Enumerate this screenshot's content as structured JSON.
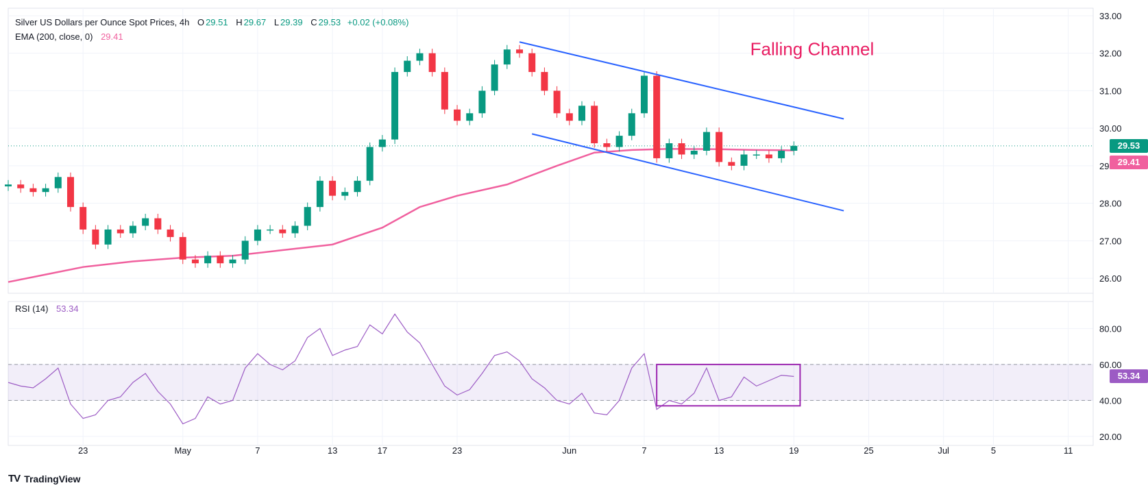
{
  "header": {
    "symbol": "Silver US Dollars per Ounce Spot Prices, 4h",
    "o_label": "O",
    "o_value": "29.51",
    "h_label": "H",
    "h_value": "29.67",
    "l_label": "L",
    "l_value": "29.39",
    "c_label": "C",
    "c_value": "29.53",
    "change": "+0.02 (+0.08%)",
    "ema_label": "EMA (200, close, 0)",
    "ema_value": "29.41",
    "rsi_label": "RSI (14)",
    "rsi_value": "53.34"
  },
  "annotation": "Falling Channel",
  "footer": {
    "brand": "TradingView",
    "logo": "TV"
  },
  "colors": {
    "up": "#089981",
    "down": "#f23645",
    "ema": "#f0609e",
    "rsi": "#9c5bc4",
    "channel": "#2962ff",
    "box": "#9c27b0",
    "annotation": "#e91e63",
    "grid": "#f0f3fa"
  },
  "price_tags": {
    "last": "29.53",
    "ema": "29.41"
  },
  "rsi_tag": "53.34",
  "chart_data": [
    {
      "type": "candlestick",
      "title": "Silver US Dollars per Ounce Spot Prices, 4h",
      "ylim": [
        25.6,
        33.2
      ],
      "yticks": [
        "33.00",
        "32.00",
        "31.00",
        "30.00",
        "29.00",
        "28.00",
        "27.00",
        "26.00"
      ],
      "xticks": [
        {
          "label": "23",
          "t": 6
        },
        {
          "label": "May",
          "t": 14
        },
        {
          "label": "7",
          "t": 20
        },
        {
          "label": "13",
          "t": 26
        },
        {
          "label": "17",
          "t": 30
        },
        {
          "label": "23",
          "t": 36
        },
        {
          "label": "Jun",
          "t": 45
        },
        {
          "label": "7",
          "t": 51
        },
        {
          "label": "13",
          "t": 57
        },
        {
          "label": "19",
          "t": 63
        },
        {
          "label": "25",
          "t": 69
        },
        {
          "label": "Jul",
          "t": 75
        },
        {
          "label": "5",
          "t": 79
        },
        {
          "label": "11",
          "t": 85
        }
      ],
      "close_series": [
        {
          "t": 0,
          "v": 28.5
        },
        {
          "t": 1,
          "v": 28.4
        },
        {
          "t": 2,
          "v": 28.3
        },
        {
          "t": 3,
          "v": 28.4
        },
        {
          "t": 4,
          "v": 28.7
        },
        {
          "t": 5,
          "v": 27.9
        },
        {
          "t": 6,
          "v": 27.3
        },
        {
          "t": 7,
          "v": 26.9
        },
        {
          "t": 8,
          "v": 27.3
        },
        {
          "t": 9,
          "v": 27.2
        },
        {
          "t": 10,
          "v": 27.4
        },
        {
          "t": 11,
          "v": 27.6
        },
        {
          "t": 12,
          "v": 27.3
        },
        {
          "t": 13,
          "v": 27.1
        },
        {
          "t": 14,
          "v": 26.5
        },
        {
          "t": 15,
          "v": 26.4
        },
        {
          "t": 16,
          "v": 26.6
        },
        {
          "t": 17,
          "v": 26.4
        },
        {
          "t": 18,
          "v": 26.5
        },
        {
          "t": 19,
          "v": 27.0
        },
        {
          "t": 20,
          "v": 27.3
        },
        {
          "t": 21,
          "v": 27.3
        },
        {
          "t": 22,
          "v": 27.2
        },
        {
          "t": 23,
          "v": 27.4
        },
        {
          "t": 24,
          "v": 27.9
        },
        {
          "t": 25,
          "v": 28.6
        },
        {
          "t": 26,
          "v": 28.2
        },
        {
          "t": 27,
          "v": 28.3
        },
        {
          "t": 28,
          "v": 28.6
        },
        {
          "t": 29,
          "v": 29.5
        },
        {
          "t": 30,
          "v": 29.7
        },
        {
          "t": 31,
          "v": 31.5
        },
        {
          "t": 32,
          "v": 31.8
        },
        {
          "t": 33,
          "v": 32.0
        },
        {
          "t": 34,
          "v": 31.5
        },
        {
          "t": 35,
          "v": 30.5
        },
        {
          "t": 36,
          "v": 30.2
        },
        {
          "t": 37,
          "v": 30.4
        },
        {
          "t": 38,
          "v": 31.0
        },
        {
          "t": 39,
          "v": 31.7
        },
        {
          "t": 40,
          "v": 32.1
        },
        {
          "t": 41,
          "v": 32.0
        },
        {
          "t": 42,
          "v": 31.5
        },
        {
          "t": 43,
          "v": 31.0
        },
        {
          "t": 44,
          "v": 30.4
        },
        {
          "t": 45,
          "v": 30.2
        },
        {
          "t": 46,
          "v": 30.6
        },
        {
          "t": 47,
          "v": 29.6
        },
        {
          "t": 48,
          "v": 29.5
        },
        {
          "t": 49,
          "v": 29.8
        },
        {
          "t": 50,
          "v": 30.4
        },
        {
          "t": 51,
          "v": 31.4
        },
        {
          "t": 52,
          "v": 29.2
        },
        {
          "t": 53,
          "v": 29.6
        },
        {
          "t": 54,
          "v": 29.3
        },
        {
          "t": 55,
          "v": 29.4
        },
        {
          "t": 56,
          "v": 29.9
        },
        {
          "t": 57,
          "v": 29.1
        },
        {
          "t": 58,
          "v": 29.0
        },
        {
          "t": 59,
          "v": 29.3
        },
        {
          "t": 60,
          "v": 29.3
        },
        {
          "t": 61,
          "v": 29.2
        },
        {
          "t": 62,
          "v": 29.4
        },
        {
          "t": 63,
          "v": 29.53
        }
      ],
      "ema_200": [
        {
          "t": 0,
          "v": 25.9
        },
        {
          "t": 3,
          "v": 26.1
        },
        {
          "t": 6,
          "v": 26.3
        },
        {
          "t": 10,
          "v": 26.45
        },
        {
          "t": 14,
          "v": 26.55
        },
        {
          "t": 18,
          "v": 26.6
        },
        {
          "t": 22,
          "v": 26.75
        },
        {
          "t": 26,
          "v": 26.9
        },
        {
          "t": 30,
          "v": 27.35
        },
        {
          "t": 33,
          "v": 27.9
        },
        {
          "t": 36,
          "v": 28.2
        },
        {
          "t": 40,
          "v": 28.5
        },
        {
          "t": 44,
          "v": 29.0
        },
        {
          "t": 47,
          "v": 29.35
        },
        {
          "t": 50,
          "v": 29.42
        },
        {
          "t": 53,
          "v": 29.45
        },
        {
          "t": 57,
          "v": 29.44
        },
        {
          "t": 60,
          "v": 29.42
        },
        {
          "t": 63,
          "v": 29.41
        }
      ],
      "channel_upper": [
        {
          "t": 41,
          "v": 32.3
        },
        {
          "t": 67,
          "v": 30.25
        }
      ],
      "channel_lower": [
        {
          "t": 42,
          "v": 29.85
        },
        {
          "t": 67,
          "v": 27.8
        }
      ],
      "last_price": 29.53,
      "annotation": "Falling Channel"
    },
    {
      "type": "line",
      "title": "RSI (14)",
      "ylim": [
        15,
        95
      ],
      "yticks": [
        "80.00",
        "60.00",
        "40.00",
        "20.00"
      ],
      "bands": [
        40,
        60
      ],
      "series": [
        {
          "name": "RSI (14)",
          "values": [
            {
              "t": 0,
              "v": 50
            },
            {
              "t": 1,
              "v": 48
            },
            {
              "t": 2,
              "v": 47
            },
            {
              "t": 3,
              "v": 52
            },
            {
              "t": 4,
              "v": 58
            },
            {
              "t": 5,
              "v": 38
            },
            {
              "t": 6,
              "v": 30
            },
            {
              "t": 7,
              "v": 32
            },
            {
              "t": 8,
              "v": 40
            },
            {
              "t": 9,
              "v": 42
            },
            {
              "t": 10,
              "v": 50
            },
            {
              "t": 11,
              "v": 55
            },
            {
              "t": 12,
              "v": 45
            },
            {
              "t": 13,
              "v": 38
            },
            {
              "t": 14,
              "v": 27
            },
            {
              "t": 15,
              "v": 30
            },
            {
              "t": 16,
              "v": 42
            },
            {
              "t": 17,
              "v": 38
            },
            {
              "t": 18,
              "v": 40
            },
            {
              "t": 19,
              "v": 58
            },
            {
              "t": 20,
              "v": 66
            },
            {
              "t": 21,
              "v": 60
            },
            {
              "t": 22,
              "v": 57
            },
            {
              "t": 23,
              "v": 62
            },
            {
              "t": 24,
              "v": 75
            },
            {
              "t": 25,
              "v": 80
            },
            {
              "t": 26,
              "v": 65
            },
            {
              "t": 27,
              "v": 68
            },
            {
              "t": 28,
              "v": 70
            },
            {
              "t": 29,
              "v": 82
            },
            {
              "t": 30,
              "v": 77
            },
            {
              "t": 31,
              "v": 88
            },
            {
              "t": 32,
              "v": 78
            },
            {
              "t": 33,
              "v": 72
            },
            {
              "t": 34,
              "v": 60
            },
            {
              "t": 35,
              "v": 48
            },
            {
              "t": 36,
              "v": 43
            },
            {
              "t": 37,
              "v": 46
            },
            {
              "t": 38,
              "v": 55
            },
            {
              "t": 39,
              "v": 65
            },
            {
              "t": 40,
              "v": 67
            },
            {
              "t": 41,
              "v": 62
            },
            {
              "t": 42,
              "v": 52
            },
            {
              "t": 43,
              "v": 47
            },
            {
              "t": 44,
              "v": 40
            },
            {
              "t": 45,
              "v": 38
            },
            {
              "t": 46,
              "v": 44
            },
            {
              "t": 47,
              "v": 33
            },
            {
              "t": 48,
              "v": 32
            },
            {
              "t": 49,
              "v": 40
            },
            {
              "t": 50,
              "v": 58
            },
            {
              "t": 51,
              "v": 66
            },
            {
              "t": 52,
              "v": 35
            },
            {
              "t": 53,
              "v": 40
            },
            {
              "t": 54,
              "v": 38
            },
            {
              "t": 55,
              "v": 44
            },
            {
              "t": 56,
              "v": 58
            },
            {
              "t": 57,
              "v": 40
            },
            {
              "t": 58,
              "v": 42
            },
            {
              "t": 59,
              "v": 53
            },
            {
              "t": 60,
              "v": 48
            },
            {
              "t": 61,
              "v": 51
            },
            {
              "t": 62,
              "v": 54
            },
            {
              "t": 63,
              "v": 53.34
            }
          ]
        }
      ],
      "highlight_box": {
        "t_start": 52,
        "t_end": 63.5,
        "v_low": 37,
        "v_high": 60
      },
      "last_value": 53.34
    }
  ]
}
